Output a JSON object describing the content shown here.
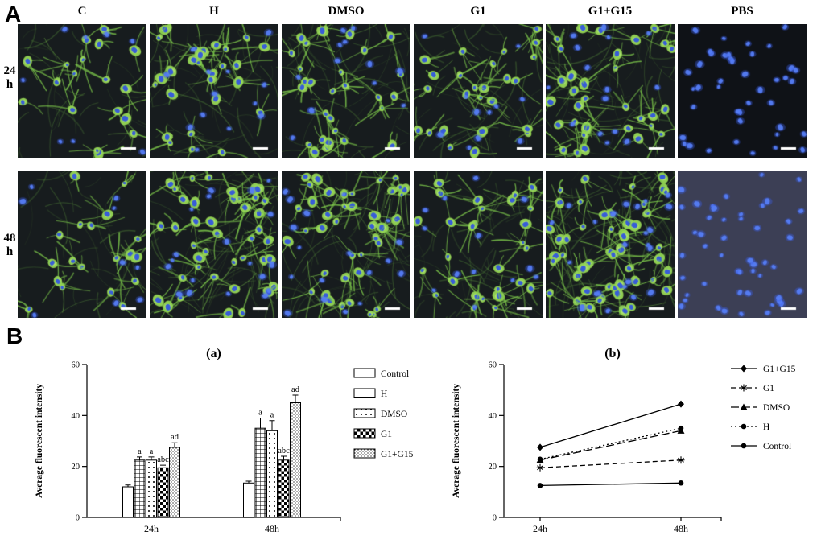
{
  "figure_labels": {
    "panelA": "A",
    "panelB": "B"
  },
  "panelA": {
    "columns": [
      "C",
      "H",
      "DMSO",
      "G1",
      "G1+G15",
      "PBS"
    ],
    "row_labels": [
      [
        "24",
        "h"
      ],
      [
        "48",
        "h"
      ]
    ],
    "bg": "#171c1e",
    "pbs_bg": [
      "#0f1217",
      "#3c3f55"
    ],
    "stain_colors": {
      "cytoskeleton": "#7dc84b",
      "nuclei": "#3b5ce8",
      "scalebar": "#ffffff"
    }
  },
  "chart_data": [
    {
      "type": "bar",
      "title": "(a)",
      "ylabel": "Average fluorescent intensity",
      "xlabel": "",
      "ylim": [
        0,
        60
      ],
      "yticks": [
        0,
        20,
        40,
        60
      ],
      "categories": [
        "24h",
        "48h"
      ],
      "series": [
        {
          "name": "Control",
          "values": [
            12,
            13.5
          ],
          "errors": [
            0.7,
            0.7
          ],
          "pattern": "plain"
        },
        {
          "name": "H",
          "values": [
            22.5,
            35
          ],
          "errors": [
            1.2,
            4
          ],
          "pattern": "grid"
        },
        {
          "name": "DMSO",
          "values": [
            22.5,
            34
          ],
          "errors": [
            1.2,
            4
          ],
          "pattern": "dots"
        },
        {
          "name": "G1",
          "values": [
            19.5,
            22.5
          ],
          "errors": [
            1,
            1.5
          ],
          "pattern": "checker"
        },
        {
          "name": "G1+G15",
          "values": [
            27.5,
            45
          ],
          "errors": [
            1.8,
            3
          ],
          "pattern": "stipple"
        }
      ],
      "annotations": [
        [
          "",
          "a",
          "a",
          "abc",
          "ad"
        ],
        [
          "",
          "a",
          "a",
          "abc",
          "ad"
        ]
      ],
      "legend_position": "right",
      "grid": false
    },
    {
      "type": "line",
      "title": "(b)",
      "ylabel": "Average fluorescent intensity",
      "xlabel": "",
      "ylim": [
        0,
        60
      ],
      "yticks": [
        0,
        20,
        40,
        60
      ],
      "x": [
        "24h",
        "48h"
      ],
      "series": [
        {
          "name": "G1+G15",
          "values": [
            27.5,
            44.5
          ],
          "marker": "diamond",
          "dash": "solid"
        },
        {
          "name": "G1",
          "values": [
            19.5,
            22.5
          ],
          "marker": "star",
          "dash": "dashed"
        },
        {
          "name": "DMSO",
          "values": [
            22.5,
            34
          ],
          "marker": "triangle",
          "dash": "longdash"
        },
        {
          "name": "H",
          "values": [
            22.8,
            35
          ],
          "marker": "circle",
          "dash": "dotted"
        },
        {
          "name": "Control",
          "values": [
            12.5,
            13.5
          ],
          "marker": "circle",
          "dash": "solid"
        }
      ],
      "legend_position": "right",
      "grid": false
    }
  ]
}
